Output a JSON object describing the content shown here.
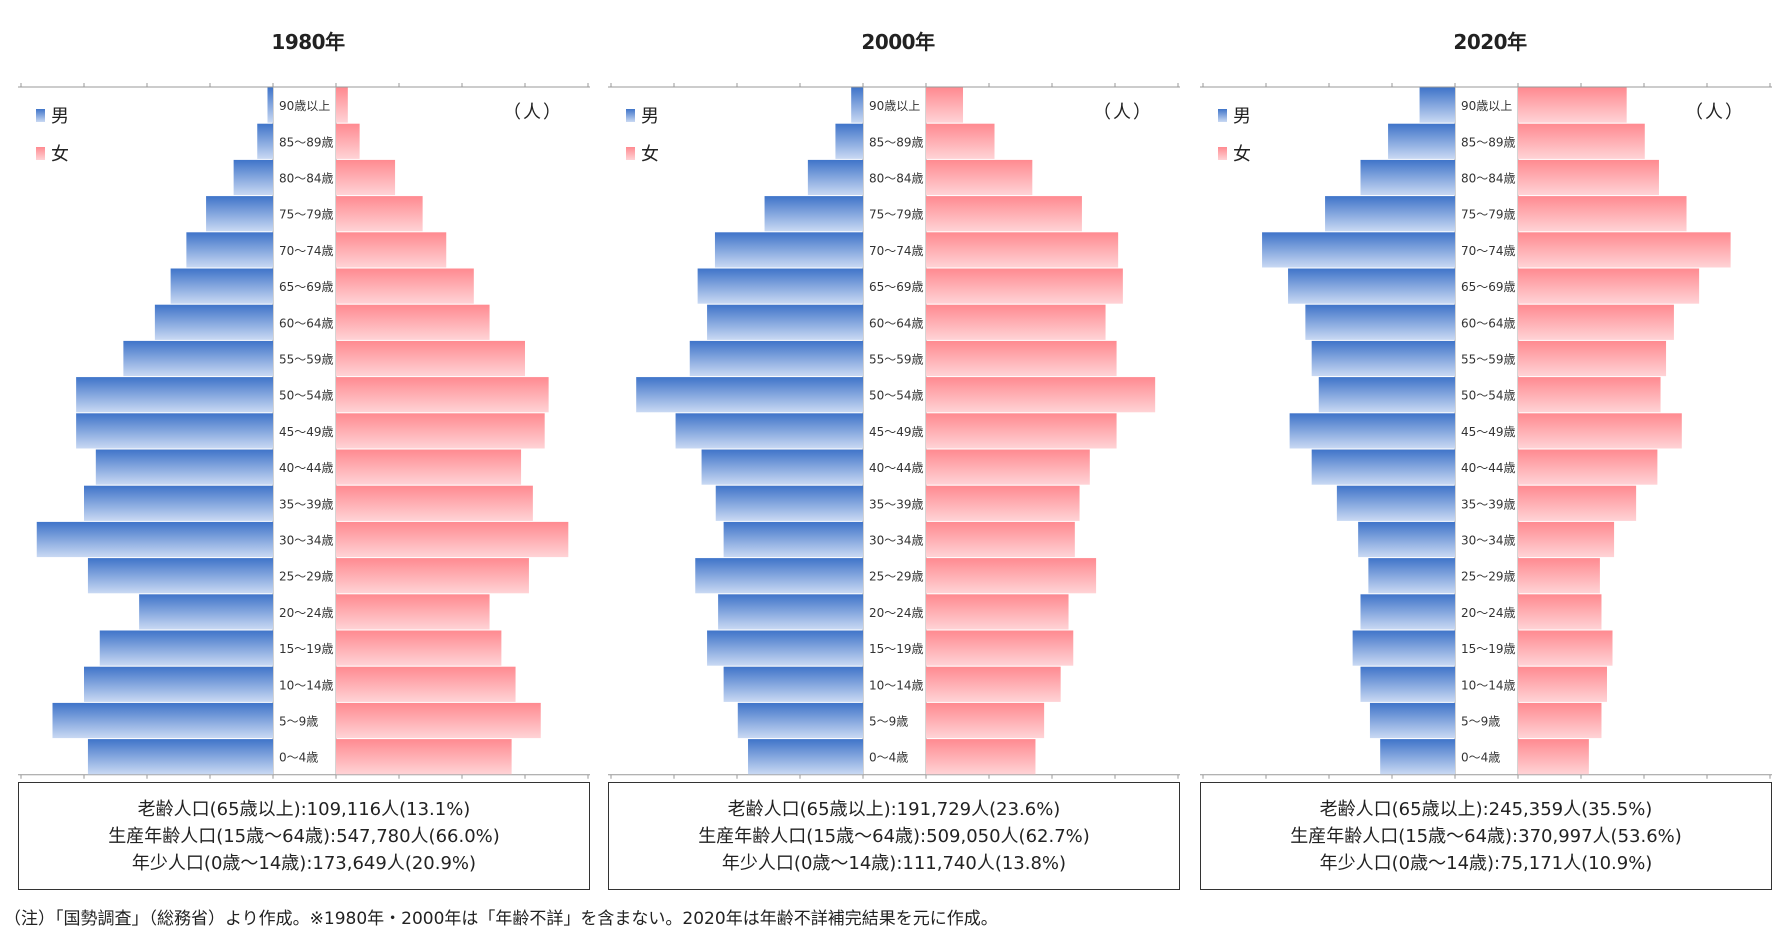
{
  "age_groups": [
    "90歳以上",
    "85～89歳",
    "80～84歳",
    "75～79歳",
    "70～74歳",
    "65～69歳",
    "60～64歳",
    "55～59歳",
    "50～54歳",
    "45～49歳",
    "40～44歳",
    "35～39歳",
    "30～34歳",
    "25～29歳",
    "20～24歳",
    "15～19歳",
    "10～14歳",
    "5～9歳",
    "0～4歳"
  ],
  "legend": {
    "male": "男",
    "female": "女"
  },
  "unit": "（人）",
  "colors": {
    "male_dark": "#3f74c9",
    "male_light": "#c9d9f3",
    "female_dark": "#ff8a90",
    "female_light": "#ffd3d6"
  },
  "chart_data": [
    {
      "type": "bar",
      "title": "1980年",
      "categories": [
        "90歳以上",
        "85～89歳",
        "80～84歳",
        "75～79歳",
        "70～74歳",
        "65～69歳",
        "60～64歳",
        "55～59歳",
        "50～54歳",
        "45～49歳",
        "40～44歳",
        "35～39歳",
        "30～34歳",
        "25～29歳",
        "20～24歳",
        "15～19歳",
        "10～14歳",
        "5～9歳",
        "0～4歳"
      ],
      "series": [
        {
          "name": "男",
          "values": [
            700,
            2000,
            5000,
            8500,
            11000,
            13000,
            15000,
            19000,
            25000,
            25000,
            22500,
            24000,
            30000,
            23500,
            17000,
            22000,
            24000,
            28000,
            23500
          ]
        },
        {
          "name": "女",
          "values": [
            1500,
            3000,
            7500,
            11000,
            14000,
            17500,
            19500,
            24000,
            27000,
            26500,
            23500,
            25000,
            29500,
            24500,
            19500,
            21000,
            22800,
            26000,
            22300
          ]
        }
      ],
      "summary": [
        "老齢人口(65歳以上):109,116人(13.1%)",
        "生産年齢人口(15歳～64歳):547,780人(66.0%)",
        "年少人口(0歳～14歳):173,649人(20.9%)"
      ]
    },
    {
      "type": "bar",
      "title": "2000年",
      "categories": [
        "90歳以上",
        "85～89歳",
        "80～84歳",
        "75～79歳",
        "70～74歳",
        "65～69歳",
        "60～64歳",
        "55～59歳",
        "50～54歳",
        "45～49歳",
        "40～44歳",
        "35～39歳",
        "30～34歳",
        "25～29歳",
        "20～24歳",
        "15～19歳",
        "10～14歳",
        "5～9歳",
        "0～4歳"
      ],
      "series": [
        {
          "name": "男",
          "values": [
            1500,
            3500,
            7000,
            12500,
            18800,
            21000,
            19800,
            22000,
            28800,
            23800,
            20500,
            18700,
            17700,
            21300,
            18400,
            19800,
            17700,
            15900,
            14600
          ]
        },
        {
          "name": "女",
          "values": [
            4700,
            8700,
            13500,
            19800,
            24400,
            25000,
            22800,
            24200,
            29100,
            24200,
            20800,
            19500,
            18900,
            21600,
            18100,
            18700,
            17100,
            15000,
            13900
          ]
        }
      ],
      "summary": [
        "老齢人口(65歳以上):191,729人(23.6%)",
        "生産年齢人口(15歳～64歳):509,050人(62.7%)",
        "年少人口(0歳～14歳):111,740人(13.8%)"
      ]
    },
    {
      "type": "bar",
      "title": "2020年",
      "categories": [
        "90歳以上",
        "85～89歳",
        "80～84歳",
        "75～79歳",
        "70～74歳",
        "65～69歳",
        "60～64歳",
        "55～59歳",
        "50～54歳",
        "45～49歳",
        "40～44歳",
        "35～39歳",
        "30～34歳",
        "25～29歳",
        "20～24歳",
        "15～19歳",
        "10～14歳",
        "5～9歳",
        "0～4歳"
      ],
      "series": [
        {
          "name": "男",
          "values": [
            4500,
            8500,
            12000,
            16500,
            24500,
            21200,
            19000,
            18200,
            17300,
            21000,
            18200,
            15000,
            12300,
            11000,
            12000,
            13000,
            12000,
            10800,
            9500
          ]
        },
        {
          "name": "女",
          "values": [
            13800,
            16100,
            17900,
            21400,
            27000,
            23000,
            19800,
            18800,
            18100,
            20800,
            17700,
            15000,
            12200,
            10400,
            10600,
            12000,
            11300,
            10600,
            9000
          ]
        }
      ],
      "summary": [
        "老齢人口(65歳以上):245,359人(35.5%)",
        "生産年齢人口(15歳～64歳):370,997人(53.6%)",
        "年少人口(0歳～14歳):75,171人(10.9%)"
      ]
    }
  ],
  "note": "（注）「国勢調査」（総務省）より作成。※1980年・2000年は「年齢不詳」を含まない。2020年は年齢不詳補完結果を元に作成。"
}
